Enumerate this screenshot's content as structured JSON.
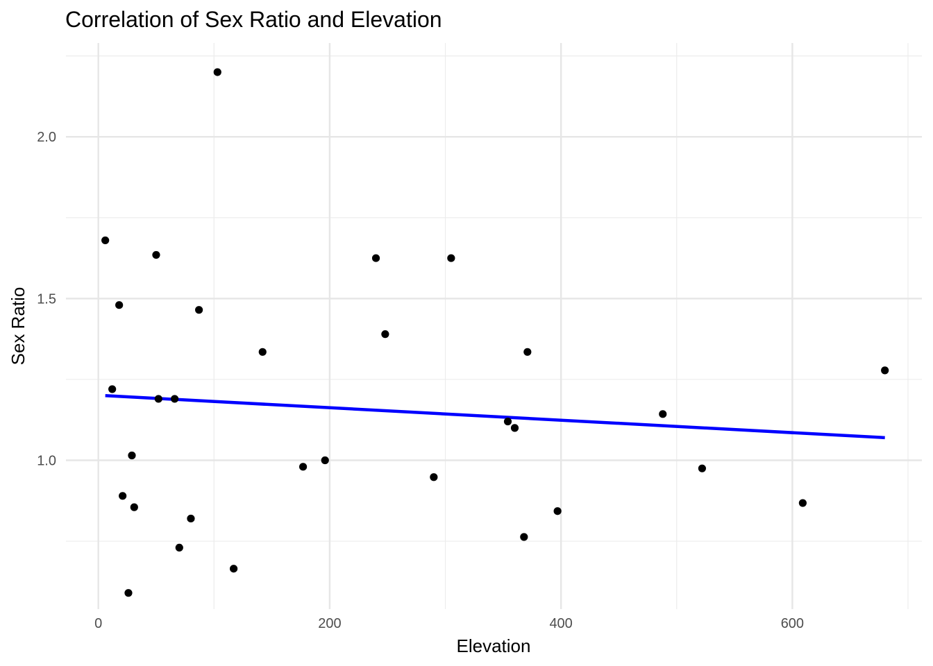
{
  "chart_data": {
    "type": "scatter",
    "title": "Correlation of Sex Ratio and Elevation",
    "xlabel": "Elevation",
    "ylabel": "Sex Ratio",
    "xlim": [
      -28,
      712
    ],
    "ylim": [
      0.54,
      2.29
    ],
    "x_major_ticks": [
      0,
      200,
      400,
      600
    ],
    "x_minor_ticks": [
      100,
      300,
      500,
      700
    ],
    "y_major_ticks": [
      1.0,
      1.5,
      2.0
    ],
    "y_minor_ticks": [
      0.75,
      1.25,
      1.75,
      2.25
    ],
    "x_tick_labels": [
      "0",
      "200",
      "400",
      "600"
    ],
    "y_tick_labels": [
      "1.0",
      "1.5",
      "2.0"
    ],
    "grid": true,
    "points": [
      {
        "x": 6,
        "y": 1.68
      },
      {
        "x": 12,
        "y": 1.22
      },
      {
        "x": 18,
        "y": 1.48
      },
      {
        "x": 21,
        "y": 0.89
      },
      {
        "x": 26,
        "y": 0.59
      },
      {
        "x": 29,
        "y": 1.015
      },
      {
        "x": 31,
        "y": 0.855
      },
      {
        "x": 50,
        "y": 1.635
      },
      {
        "x": 52,
        "y": 1.19
      },
      {
        "x": 66,
        "y": 1.19
      },
      {
        "x": 70,
        "y": 0.73
      },
      {
        "x": 80,
        "y": 0.82
      },
      {
        "x": 87,
        "y": 1.465
      },
      {
        "x": 103,
        "y": 2.2
      },
      {
        "x": 117,
        "y": 0.665
      },
      {
        "x": 142,
        "y": 1.335
      },
      {
        "x": 177,
        "y": 0.98
      },
      {
        "x": 196,
        "y": 1.0
      },
      {
        "x": 240,
        "y": 1.625
      },
      {
        "x": 248,
        "y": 1.39
      },
      {
        "x": 290,
        "y": 0.948
      },
      {
        "x": 305,
        "y": 1.625
      },
      {
        "x": 354,
        "y": 1.12
      },
      {
        "x": 360,
        "y": 1.1
      },
      {
        "x": 368,
        "y": 0.763
      },
      {
        "x": 371,
        "y": 1.335
      },
      {
        "x": 397,
        "y": 0.843
      },
      {
        "x": 488,
        "y": 1.143
      },
      {
        "x": 522,
        "y": 0.975
      },
      {
        "x": 609,
        "y": 0.868
      },
      {
        "x": 680,
        "y": 1.278
      }
    ],
    "fit_line": {
      "x": [
        6,
        680
      ],
      "y": [
        1.2,
        1.07
      ],
      "color": "#0000ff"
    }
  }
}
